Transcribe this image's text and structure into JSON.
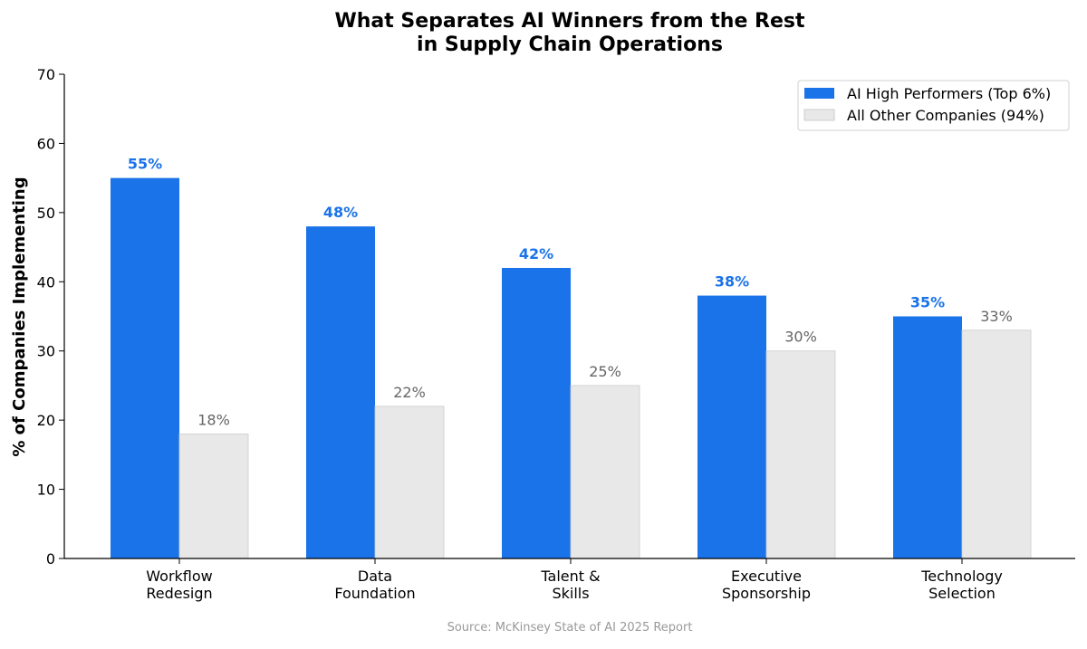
{
  "chart_data": {
    "type": "bar",
    "title_lines": [
      "What Separates AI Winners from the Rest",
      "in Supply Chain Operations"
    ],
    "xlabel": "",
    "ylabel": "% of Companies Implementing",
    "ylim": [
      0,
      70
    ],
    "yticks": [
      "0",
      "10",
      "20",
      "30",
      "40",
      "50",
      "60",
      "70"
    ],
    "categories": [
      [
        "Workflow",
        "Redesign"
      ],
      [
        "Data",
        "Foundation"
      ],
      [
        "Talent &",
        "Skills"
      ],
      [
        "Executive",
        "Sponsorship"
      ],
      [
        "Technology",
        "Selection"
      ]
    ],
    "series": [
      {
        "name": "AI High Performers (Top 6%)",
        "color": "#1a73e8",
        "label_color": "#1a73e8",
        "values": [
          55,
          48,
          42,
          38,
          35
        ],
        "labels": [
          "55%",
          "48%",
          "42%",
          "38%",
          "35%"
        ]
      },
      {
        "name": "All Other Companies (94%)",
        "color": "#e8e8e8",
        "label_color": "#666666",
        "values": [
          18,
          22,
          25,
          30,
          33
        ],
        "labels": [
          "18%",
          "22%",
          "25%",
          "30%",
          "33%"
        ]
      }
    ],
    "legend": "top-right",
    "grid": false,
    "source": "Source: McKinsey State of AI 2025 Report"
  }
}
